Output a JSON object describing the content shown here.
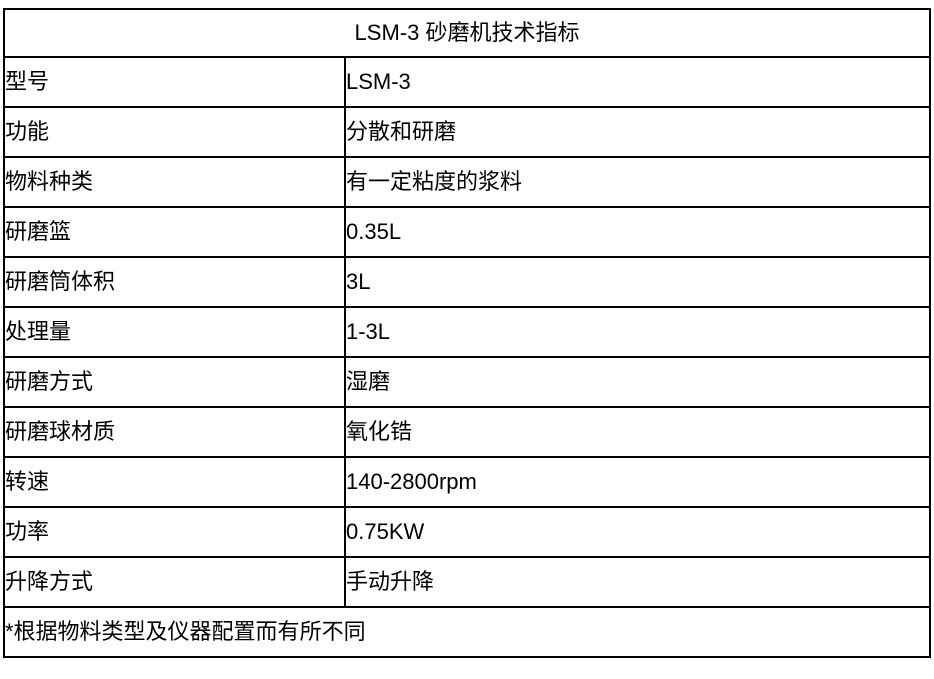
{
  "table": {
    "title": "LSM-3 砂磨机技术指标",
    "rows": [
      {
        "label": "型号",
        "value": "LSM-3"
      },
      {
        "label": "功能",
        "value": "分散和研磨"
      },
      {
        "label": "物料种类",
        "value": "有一定粘度的浆料"
      },
      {
        "label": "研磨篮",
        "value": "0.35L"
      },
      {
        "label": "研磨筒体积",
        "value": "3L"
      },
      {
        "label": "处理量",
        "value": "1-3L"
      },
      {
        "label": "研磨方式",
        "value": "湿磨"
      },
      {
        "label": "研磨球材质",
        "value": "氧化锆"
      },
      {
        "label": "转速",
        "value": "140-2800rpm"
      },
      {
        "label": "功率",
        "value": "0.75KW"
      },
      {
        "label": "升降方式",
        "value": "手动升降"
      }
    ],
    "footnote": "*根据物料类型及仪器配置而有所不同",
    "colors": {
      "border": "#000000",
      "background": "#ffffff",
      "text": "#000000"
    }
  }
}
